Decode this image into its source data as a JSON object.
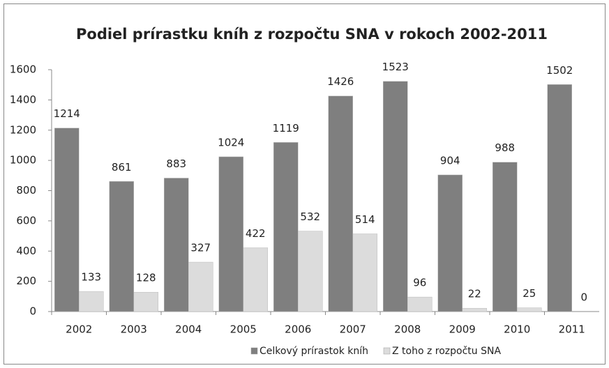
{
  "chart_data": {
    "type": "bar",
    "title": "Podiel prírastku kníh z rozpočtu SNA v rokoch 2002-2011",
    "categories": [
      "2002",
      "2003",
      "2004",
      "2005",
      "2006",
      "2007",
      "2008",
      "2009",
      "2010",
      "2011"
    ],
    "series": [
      {
        "name": "Celkový prírastok kníh",
        "color": "#7f7f7f",
        "values": [
          1214,
          861,
          883,
          1024,
          1119,
          1426,
          1523,
          904,
          988,
          1502
        ]
      },
      {
        "name": "Z toho z rozpočtu SNA",
        "color": "#dcdcdc",
        "values": [
          133,
          128,
          327,
          422,
          532,
          514,
          96,
          22,
          25,
          0
        ]
      }
    ],
    "ylim": [
      0,
      1600
    ],
    "yticks": [
      0,
      200,
      400,
      600,
      800,
      1000,
      1200,
      1400,
      1600
    ],
    "grid": false,
    "legend": "bottom"
  }
}
